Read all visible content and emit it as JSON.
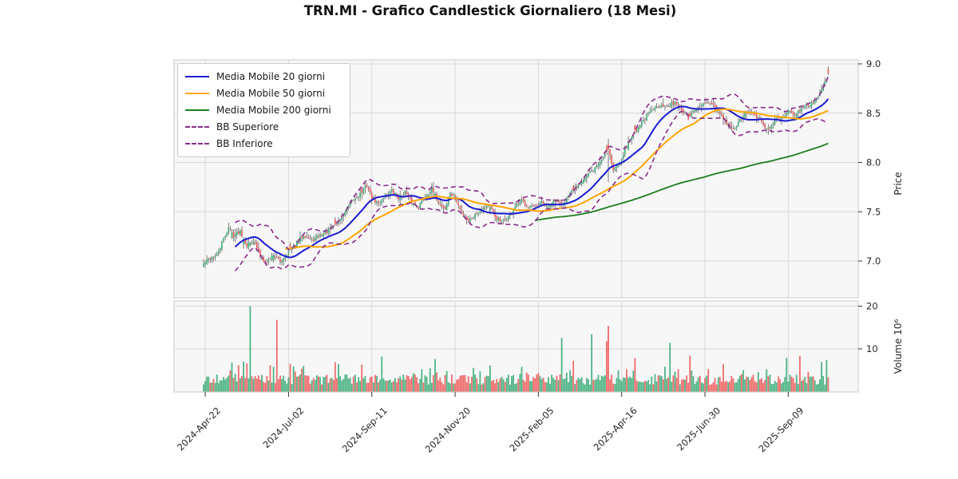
{
  "title": "TRN.MI - Grafico Candlestick Giornaliero (18 Mesi)",
  "legend": {
    "items": [
      {
        "label": "Media Mobile 20 giorni",
        "color": "#1a1ad1",
        "dash": "solid"
      },
      {
        "label": "Media Mobile 50 giorni",
        "color": "#ffa500",
        "dash": "solid"
      },
      {
        "label": "Media Mobile 200 giorni",
        "color": "#1e7d1e",
        "dash": "solid"
      },
      {
        "label": "BB Superiore",
        "color": "#8a2b8a",
        "dash": "dashed"
      },
      {
        "label": "BB Inferiore",
        "color": "#8a2b8a",
        "dash": "dashed"
      }
    ]
  },
  "axes": {
    "price_label": "Price",
    "volume_label": "Volume  10⁶",
    "price_ticks": [
      "9.0",
      "8.5",
      "8.0",
      "7.5",
      "7.0"
    ],
    "price_tick_values": [
      9.0,
      8.5,
      8.0,
      7.5,
      7.0
    ],
    "volume_ticks": [
      "20",
      "10"
    ],
    "volume_tick_values": [
      20,
      10
    ],
    "x_ticks": [
      {
        "label": "2024-Apr-22",
        "i": 1
      },
      {
        "label": "2024-Jul-02",
        "i": 51
      },
      {
        "label": "2024-Sep-11",
        "i": 101
      },
      {
        "label": "2024-Nov-20",
        "i": 151
      },
      {
        "label": "2025-Feb-05",
        "i": 201
      },
      {
        "label": "2025-Apr-16",
        "i": 251
      },
      {
        "label": "2025-Jun-30",
        "i": 301
      },
      {
        "label": "2025-Sep-09",
        "i": 351
      }
    ]
  },
  "chart_data": {
    "type": "candlestick",
    "symbol": "TRN.MI",
    "period": "18 Mesi",
    "days": 376,
    "price_axis_range": [
      6.64,
      9.04
    ],
    "volume_axis_range_millions": [
      0,
      21.2
    ],
    "overlays": {
      "ma_windows": [
        20,
        50,
        200
      ],
      "bb_window": 20,
      "bb_mult": 2
    },
    "price_anchors": [
      [
        0,
        6.97
      ],
      [
        4,
        7.03
      ],
      [
        8,
        7.06
      ],
      [
        12,
        7.22
      ],
      [
        15,
        7.34
      ],
      [
        18,
        7.26
      ],
      [
        22,
        7.31
      ],
      [
        26,
        7.16
      ],
      [
        30,
        7.21
      ],
      [
        34,
        7.05
      ],
      [
        38,
        6.99
      ],
      [
        42,
        7.07
      ],
      [
        46,
        6.99
      ],
      [
        50,
        7.08
      ],
      [
        55,
        7.16
      ],
      [
        60,
        7.27
      ],
      [
        65,
        7.21
      ],
      [
        70,
        7.26
      ],
      [
        75,
        7.31
      ],
      [
        80,
        7.38
      ],
      [
        85,
        7.5
      ],
      [
        90,
        7.62
      ],
      [
        95,
        7.7
      ],
      [
        98,
        7.77
      ],
      [
        101,
        7.64
      ],
      [
        105,
        7.58
      ],
      [
        109,
        7.67
      ],
      [
        113,
        7.71
      ],
      [
        117,
        7.64
      ],
      [
        121,
        7.7
      ],
      [
        125,
        7.59
      ],
      [
        129,
        7.55
      ],
      [
        133,
        7.66
      ],
      [
        137,
        7.73
      ],
      [
        141,
        7.6
      ],
      [
        145,
        7.53
      ],
      [
        148,
        7.69
      ],
      [
        151,
        7.63
      ],
      [
        155,
        7.49
      ],
      [
        159,
        7.41
      ],
      [
        163,
        7.47
      ],
      [
        167,
        7.53
      ],
      [
        171,
        7.57
      ],
      [
        175,
        7.45
      ],
      [
        179,
        7.39
      ],
      [
        183,
        7.45
      ],
      [
        187,
        7.55
      ],
      [
        191,
        7.61
      ],
      [
        195,
        7.56
      ],
      [
        199,
        7.54
      ],
      [
        203,
        7.59
      ],
      [
        207,
        7.54
      ],
      [
        211,
        7.61
      ],
      [
        215,
        7.58
      ],
      [
        219,
        7.65
      ],
      [
        223,
        7.74
      ],
      [
        227,
        7.82
      ],
      [
        231,
        7.88
      ],
      [
        235,
        7.94
      ],
      [
        239,
        8.03
      ],
      [
        243,
        8.15
      ],
      [
        246,
        7.92
      ],
      [
        249,
        7.98
      ],
      [
        252,
        8.09
      ],
      [
        255,
        8.2
      ],
      [
        259,
        8.31
      ],
      [
        263,
        8.41
      ],
      [
        267,
        8.49
      ],
      [
        271,
        8.55
      ],
      [
        275,
        8.6
      ],
      [
        279,
        8.56
      ],
      [
        283,
        8.62
      ],
      [
        287,
        8.53
      ],
      [
        291,
        8.45
      ],
      [
        295,
        8.52
      ],
      [
        299,
        8.58
      ],
      [
        303,
        8.61
      ],
      [
        307,
        8.55
      ],
      [
        311,
        8.46
      ],
      [
        315,
        8.37
      ],
      [
        319,
        8.33
      ],
      [
        323,
        8.46
      ],
      [
        327,
        8.52
      ],
      [
        331,
        8.47
      ],
      [
        335,
        8.41
      ],
      [
        339,
        8.32
      ],
      [
        343,
        8.43
      ],
      [
        347,
        8.47
      ],
      [
        351,
        8.51
      ],
      [
        355,
        8.49
      ],
      [
        359,
        8.54
      ],
      [
        363,
        8.58
      ],
      [
        367,
        8.63
      ],
      [
        370,
        8.7
      ],
      [
        372,
        8.78
      ],
      [
        374,
        8.86
      ],
      [
        375,
        8.89
      ]
    ],
    "long_range_days": [
      [
        243,
        8.24,
        7.8
      ]
    ],
    "volume_spikes": [
      [
        17,
        6.8,
        "up"
      ],
      [
        21,
        6.2,
        "down"
      ],
      [
        24,
        7.0,
        "up"
      ],
      [
        26,
        6.6,
        "down"
      ],
      [
        28,
        20.0,
        "up"
      ],
      [
        40,
        6.2,
        "down"
      ],
      [
        42,
        5.8,
        "up"
      ],
      [
        44,
        16.8,
        "down"
      ],
      [
        52,
        6.5,
        "down"
      ],
      [
        54,
        5.9,
        "up"
      ],
      [
        60,
        6.0,
        "up"
      ],
      [
        79,
        6.9,
        "down"
      ],
      [
        81,
        6.4,
        "up"
      ],
      [
        95,
        6.3,
        "down"
      ],
      [
        107,
        8.2,
        "up"
      ],
      [
        139,
        7.6,
        "up"
      ],
      [
        172,
        6.1,
        "up"
      ],
      [
        215,
        12.6,
        "up"
      ],
      [
        222,
        7.2,
        "down"
      ],
      [
        233,
        13.4,
        "up"
      ],
      [
        242,
        11.8,
        "down"
      ],
      [
        243,
        15.4,
        "down"
      ],
      [
        259,
        7.8,
        "down"
      ],
      [
        280,
        11.4,
        "up"
      ],
      [
        292,
        8.4,
        "down"
      ],
      [
        312,
        6.4,
        "down"
      ],
      [
        350,
        7.9,
        "up"
      ],
      [
        358,
        8.3,
        "down"
      ],
      [
        371,
        6.9,
        "up"
      ],
      [
        374,
        7.4,
        "up"
      ]
    ],
    "volume_baseline_range_millions": [
      1.6,
      5.2
    ],
    "dir_overrides": [
      [
        374,
        "up"
      ],
      [
        375,
        "down"
      ]
    ],
    "colors": {
      "up": "#3fae78",
      "down": "#ee5e5e",
      "wick": "#4d4d4d",
      "ma20": "#1a1ad1",
      "ma50": "#ffa500",
      "ma200": "#1e7d1e",
      "bb": "#8a2b8a",
      "grid": "#d9d9d9",
      "panel_bg": "#f7f7f8",
      "spine": "#c9c9c9"
    }
  }
}
